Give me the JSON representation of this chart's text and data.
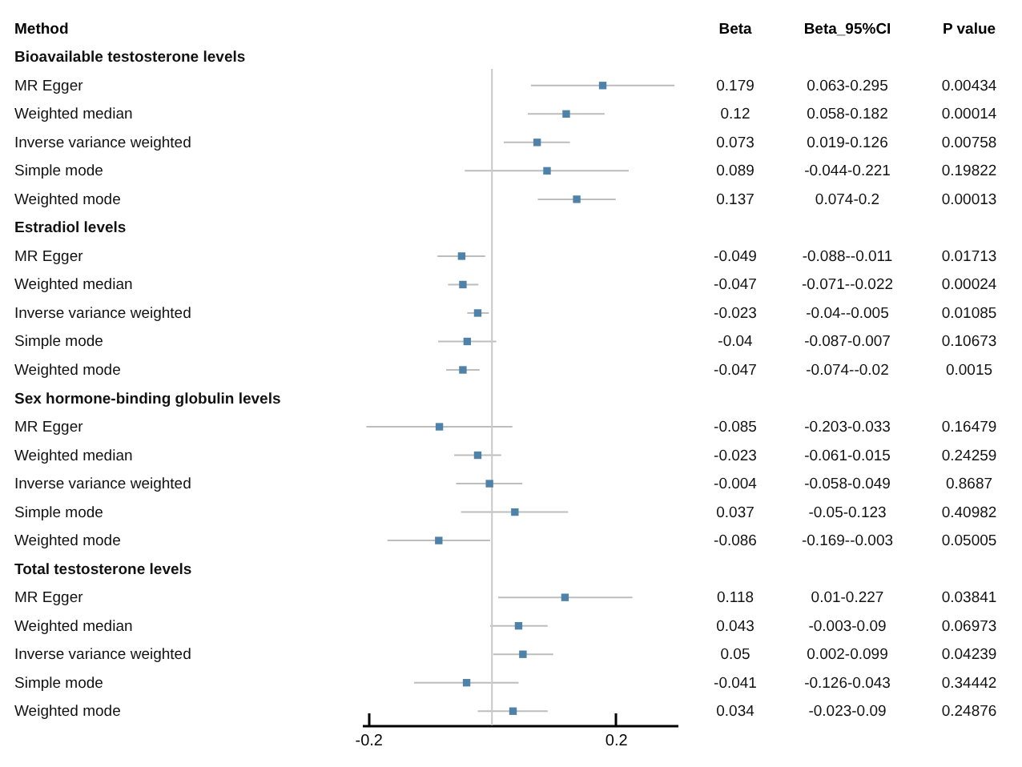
{
  "chart_data": {
    "type": "scatter",
    "orientation": "horizontal",
    "ylabel": "Method",
    "marker": "square",
    "data_labels": true,
    "categories": [
      "Bioavailable testosterone levels",
      "MR Egger",
      "Weighted median",
      "Inverse variance weighted",
      "Simple mode",
      "Weighted mode",
      "Estradiol levels",
      "MR Egger",
      "Weighted median",
      "Inverse variance weighted",
      "Simple mode",
      "Weighted mode",
      "Sex hormone-binding globulin levels",
      "MR Egger",
      "Weighted median",
      "Inverse variance weighted",
      "Simple mode",
      "Weighted mode",
      "Total testosterone levels",
      "MR Egger",
      "Weighted median",
      "Inverse variance weighted",
      "Simple mode",
      "Weighted mode"
    ],
    "series": [
      {
        "color": "#4f82a8",
        "values": [
          null,
          0.179,
          0.12,
          0.073,
          0.089,
          0.137,
          null,
          -0.049,
          -0.047,
          -0.023,
          -0.04,
          -0.047,
          null,
          -0.085,
          -0.023,
          -0.004,
          0.037,
          -0.086,
          null,
          0.118,
          0.043,
          0.05,
          -0.041,
          0.034
        ],
        "errors": [
          null,
          [
            0.063,
            0.295
          ],
          [
            0.058,
            0.182
          ],
          [
            0.019,
            0.126
          ],
          [
            -0.044,
            0.221
          ],
          [
            0.074,
            0.2
          ],
          null,
          [
            -0.088,
            -0.011
          ],
          [
            -0.071,
            -0.022
          ],
          [
            -0.04,
            -0.005
          ],
          [
            -0.087,
            0.007
          ],
          [
            -0.074,
            -0.02
          ],
          null,
          [
            -0.203,
            0.033
          ],
          [
            -0.061,
            0.015
          ],
          [
            -0.058,
            0.049
          ],
          [
            -0.05,
            0.123
          ],
          [
            -0.169,
            -0.003
          ],
          null,
          [
            0.01,
            0.227
          ],
          [
            -0.003,
            0.09
          ],
          [
            0.002,
            0.099
          ],
          [
            -0.126,
            0.043
          ],
          [
            -0.023,
            0.09
          ]
        ]
      }
    ],
    "xlim": [
      -0.21,
      0.3
    ],
    "xticks": [
      -0.2,
      0.2
    ],
    "ref_lines": [
      {
        "axis": "x",
        "value": 0,
        "color": "#c8c8c8"
      }
    ],
    "annotations": [
      "Beta",
      "Beta_95%CI",
      "P value",
      "0.063-0.295",
      "0.00434",
      "0.058-0.182",
      "0.00014",
      "0.019-0.126",
      "0.00758",
      "-0.044-0.221",
      "0.19822",
      "0.074-0.2",
      "0.00013",
      "-0.088--0.011",
      "0.01713",
      "-0.071--0.022",
      "0.00024",
      "-0.04--0.005",
      "0.01085",
      "-0.087-0.007",
      "0.10673",
      "-0.074--0.02",
      "0.0015",
      "-0.203-0.033",
      "0.16479",
      "-0.061-0.015",
      "0.24259",
      "-0.058-0.049",
      "0.8687",
      "-0.05-0.123",
      "0.40982",
      "-0.169--0.003",
      "0.05005",
      "0.01-0.227",
      "0.03841",
      "-0.003-0.09",
      "0.06973",
      "0.002-0.099",
      "0.04239",
      "-0.126-0.043",
      "0.34442",
      "-0.023-0.09",
      "0.24876"
    ]
  }
}
